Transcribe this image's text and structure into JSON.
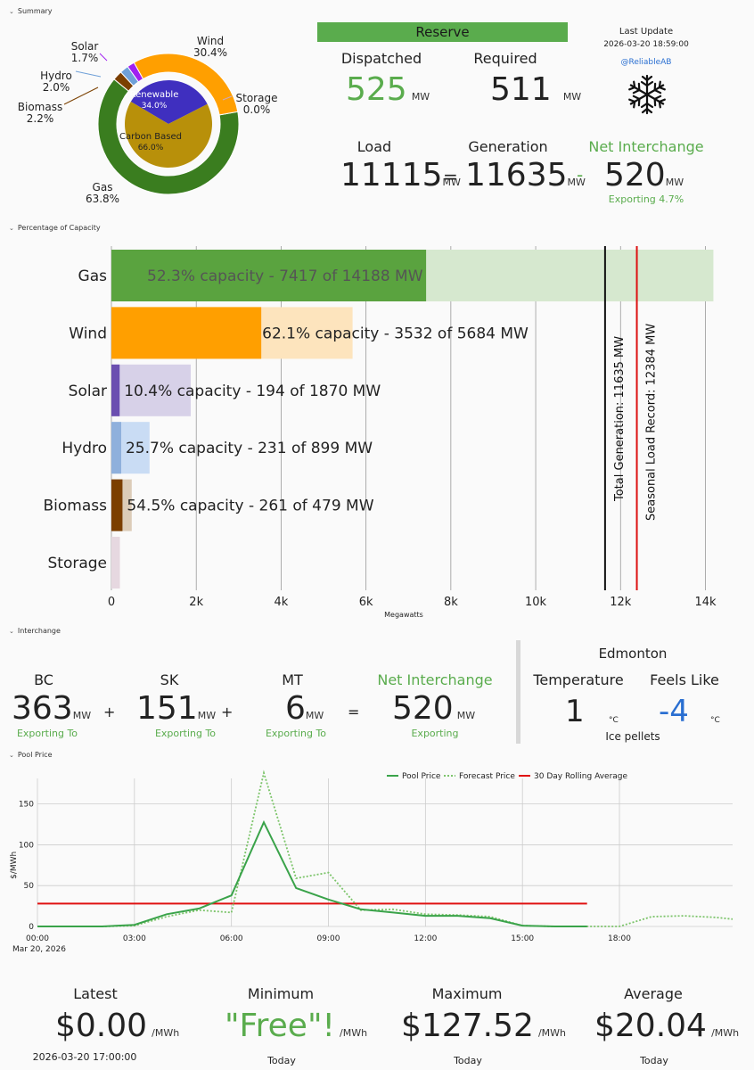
{
  "sections": {
    "summary": "Summary",
    "capacity": "Percentage of Capacity",
    "interchange": "Interchange",
    "pool_price": "Pool Price"
  },
  "donut": {
    "outer": [
      {
        "name": "Gas",
        "pct": "63.8%",
        "value": 63.8,
        "color": "#3a7d1f"
      },
      {
        "name": "Biomass",
        "pct": "2.2%",
        "value": 2.2,
        "color": "#7b3f00"
      },
      {
        "name": "Hydro",
        "pct": "2.0%",
        "value": 2.0,
        "color": "#6fa0d8"
      },
      {
        "name": "Solar",
        "pct": "1.7%",
        "value": 1.7,
        "color": "#a020f0"
      },
      {
        "name": "Wind",
        "pct": "30.4%",
        "value": 30.4,
        "color": "#ff9f00"
      },
      {
        "name": "Storage",
        "pct": "0.0%",
        "value": 0.0,
        "color": "#c8a8c8"
      }
    ],
    "inner": [
      {
        "name": "Renewable",
        "pct": "34.0%",
        "value": 34.0,
        "color": "#3f2fbf"
      },
      {
        "name": "Carbon Based",
        "pct": "66.0%",
        "value": 66.0,
        "color": "#b8900a"
      }
    ]
  },
  "reserve": {
    "title": "Reserve",
    "dispatched_label": "Dispatched",
    "dispatched_value": "525",
    "required_label": "Required",
    "required_value": "511",
    "unit": "MW"
  },
  "update": {
    "label": "Last Update",
    "time": "2026-03-20 18:59:00",
    "handle": "@ReliableAB"
  },
  "balance": {
    "load_label": "Load",
    "load_value": "11115",
    "gen_label": "Generation",
    "gen_value": "11635",
    "net_label": "Net Interchange",
    "net_value": "520",
    "net_sub": "Exporting 4.7%",
    "unit": "MW",
    "eq": "=",
    "minus": "-"
  },
  "capacity_chart": {
    "type": "bar",
    "xlabel": "Megawatts",
    "xlim": [
      0,
      14200
    ],
    "ticks": [
      0,
      2000,
      4000,
      6000,
      8000,
      10000,
      12000,
      14000
    ],
    "tick_labels": [
      "0",
      "2k",
      "4k",
      "6k",
      "8k",
      "10k",
      "12k",
      "14k"
    ],
    "categories": [
      "Gas",
      "Wind",
      "Solar",
      "Hydro",
      "Biomass",
      "Storage"
    ],
    "series": [
      {
        "name": "Gas",
        "value": 7417,
        "capacity": 14188,
        "label": "52.3% capacity - 7417 of 14188 MW",
        "color": "#5aa33f",
        "light": "#d6e8cf",
        "textcolor": "#555"
      },
      {
        "name": "Wind",
        "value": 3532,
        "capacity": 5684,
        "label": "62.1% capacity - 3532 of 5684 MW",
        "color": "#ff9f00",
        "light": "#fde4bd",
        "textcolor": "#222"
      },
      {
        "name": "Solar",
        "value": 194,
        "capacity": 1870,
        "label": "10.4% capacity - 194 of 1870 MW",
        "color": "#6b4fb0",
        "light": "#d7d1e8",
        "textcolor": "#222"
      },
      {
        "name": "Hydro",
        "value": 231,
        "capacity": 899,
        "label": "25.7% capacity - 231 of 899 MW",
        "color": "#8fb0dc",
        "light": "#c9dcf4",
        "textcolor": "#222"
      },
      {
        "name": "Biomass",
        "value": 261,
        "capacity": 479,
        "label": "54.5% capacity - 261 of 479 MW",
        "color": "#7b3f00",
        "light": "#dcccb8",
        "textcolor": "#222"
      },
      {
        "name": "Storage",
        "value": 0,
        "capacity": 200,
        "label": "",
        "color": "#c8a8c8",
        "light": "#e6d8e0",
        "textcolor": "#222"
      }
    ],
    "lines": [
      {
        "name": "Total Generation: 11635 MW",
        "value": 11635,
        "color": "#111"
      },
      {
        "name": "Seasonal Load Record: 12384 MW",
        "value": 12384,
        "color": "#d11"
      }
    ]
  },
  "interchange": {
    "items": [
      {
        "name": "BC",
        "value": "363",
        "unit": "MW",
        "sub": "Exporting To"
      },
      {
        "name": "SK",
        "value": "151",
        "unit": "MW",
        "sub": "Exporting To"
      },
      {
        "name": "MT",
        "value": "6",
        "unit": "MW",
        "sub": "Exporting To"
      }
    ],
    "plus": "+",
    "eq": "=",
    "net_label": "Net Interchange",
    "net_value": "520",
    "net_unit": "MW",
    "net_sub": "Exporting"
  },
  "weather": {
    "city": "Edmonton",
    "temp_label": "Temperature",
    "temp_value": "1",
    "feels_label": "Feels Like",
    "feels_value": "-4",
    "unit": "°C",
    "condition": "Ice pellets"
  },
  "price_chart": {
    "type": "line",
    "ylabel": "$/MWh",
    "ylim": [
      0,
      190
    ],
    "yticks": [
      0,
      50,
      100,
      150
    ],
    "xticks": [
      "00:00",
      "03:00",
      "06:00",
      "09:00",
      "12:00",
      "15:00",
      "18:00"
    ],
    "xtick_hours": [
      0,
      3,
      6,
      9,
      12,
      15,
      18
    ],
    "date_label": "Mar 20, 2026",
    "xrange_hours": [
      0,
      21.5
    ],
    "legend": [
      "Pool Price",
      "Forecast Price",
      "30 Day Rolling Average"
    ],
    "pool": [
      [
        0,
        0
      ],
      [
        1,
        0
      ],
      [
        2,
        0
      ],
      [
        3,
        2
      ],
      [
        4,
        15
      ],
      [
        5,
        22
      ],
      [
        6,
        38
      ],
      [
        7,
        127.52
      ],
      [
        8,
        47
      ],
      [
        9,
        33
      ],
      [
        10,
        21
      ],
      [
        11,
        17
      ],
      [
        12,
        13
      ],
      [
        13,
        13
      ],
      [
        14,
        10
      ],
      [
        15,
        1
      ],
      [
        16,
        0
      ],
      [
        17,
        0
      ]
    ],
    "forecast": [
      [
        0,
        0
      ],
      [
        1,
        0
      ],
      [
        2,
        0
      ],
      [
        3,
        1
      ],
      [
        4,
        12
      ],
      [
        5,
        20
      ],
      [
        6,
        17
      ],
      [
        7,
        188
      ],
      [
        8,
        59
      ],
      [
        9,
        66
      ],
      [
        10,
        20
      ],
      [
        11,
        21
      ],
      [
        12,
        15
      ],
      [
        13,
        14
      ],
      [
        14,
        12
      ],
      [
        15,
        1
      ],
      [
        16,
        0
      ],
      [
        17,
        0
      ],
      [
        18,
        0
      ],
      [
        19,
        12
      ],
      [
        20,
        13
      ],
      [
        21,
        11
      ],
      [
        21.5,
        9
      ]
    ],
    "average": [
      [
        0,
        28
      ],
      [
        17,
        28
      ]
    ],
    "colors": {
      "pool": "#3aa34a",
      "forecast": "#7cc46a",
      "average": "#e01010"
    }
  },
  "price_stats": [
    {
      "label": "Latest",
      "value": "$0.00",
      "unit": "/MWh",
      "sub": "2026-03-20 17:00:00",
      "green": false
    },
    {
      "label": "Minimum",
      "value": "\"Free\"!",
      "unit": "/MWh",
      "sub": "Today",
      "green": true
    },
    {
      "label": "Maximum",
      "value": "$127.52",
      "unit": "/MWh",
      "sub": "Today",
      "green": false
    },
    {
      "label": "Average",
      "value": "$20.04",
      "unit": "/MWh",
      "sub": "Today",
      "green": false
    }
  ]
}
